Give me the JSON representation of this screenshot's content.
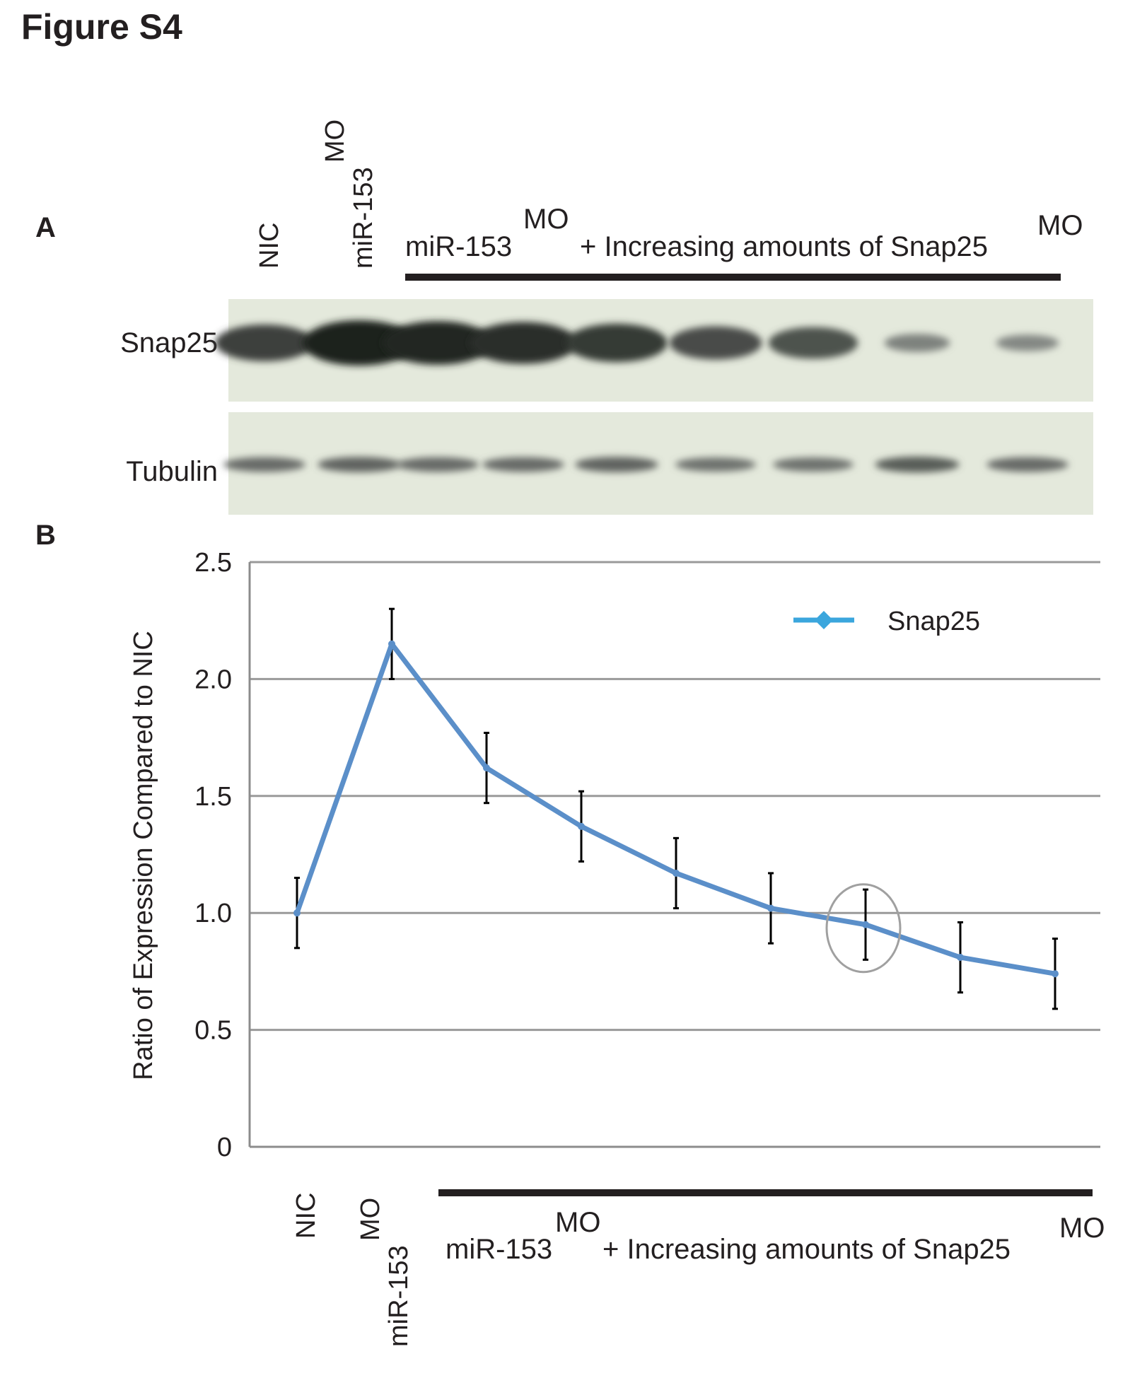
{
  "figure_title": "Figure S4",
  "panel_a": {
    "label": "A",
    "lanes": {
      "nic": "NIC",
      "mir_base": "miR-153",
      "mir_sup": "MO"
    },
    "group": {
      "mir_base": "miR-153",
      "mir_sup": "MO",
      "increase_text": "+ Increasing amounts of Snap25",
      "snap_sup": "MO"
    },
    "blot_rows": [
      "Snap25",
      "Tubulin"
    ],
    "band_intensity": {
      "snap25": [
        0.75,
        1.0,
        0.95,
        0.9,
        0.8,
        0.65,
        0.6,
        0.2,
        0.15
      ],
      "tubulin": [
        0.55,
        0.6,
        0.55,
        0.55,
        0.6,
        0.5,
        0.5,
        0.65,
        0.55
      ]
    }
  },
  "panel_b": {
    "label": "B",
    "xlabels": {
      "nic": "NIC",
      "mir_base": "miR-153",
      "mir_sup": "MO"
    },
    "group": {
      "mir_base": "miR-153",
      "mir_sup": "MO",
      "increase_text": "+ Increasing amounts of Snap25",
      "snap_sup": "MO"
    }
  },
  "chart_data": {
    "type": "line",
    "ylabel": "Ratio of Expression Compared to NIC",
    "ylim": [
      0,
      2.5
    ],
    "yticks": [
      "0",
      "0.5",
      "1.0",
      "1.5",
      "2.0",
      "2.5"
    ],
    "ytick_values": [
      0,
      0.5,
      1.0,
      1.5,
      2.0,
      2.5
    ],
    "grid": true,
    "legend_position": "top-right",
    "series": [
      {
        "name": "Snap25",
        "color": "#5b8fc9",
        "values": [
          1.0,
          2.15,
          1.62,
          1.37,
          1.17,
          1.02,
          0.95,
          0.81,
          0.74
        ],
        "err_low": [
          0.85,
          2.0,
          1.47,
          1.22,
          1.02,
          0.87,
          0.8,
          0.66,
          0.59
        ],
        "err_high": [
          1.15,
          2.3,
          1.77,
          1.52,
          1.32,
          1.17,
          1.1,
          0.96,
          0.89
        ]
      }
    ],
    "highlighted_point_index": 6
  }
}
